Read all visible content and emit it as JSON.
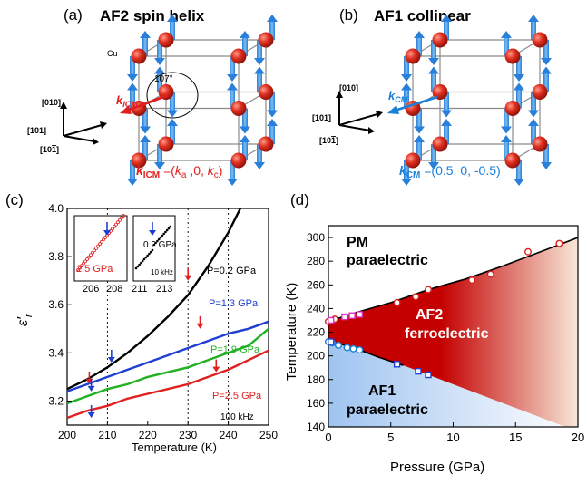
{
  "panel_a": {
    "label": "(a)",
    "title": "AF2 spin helix",
    "atom_label": "Cu",
    "angle": "107°",
    "k_label": "k",
    "k_sub": "ICM",
    "axes": {
      "y": "[010]",
      "x": "[101]",
      "z": "[10",
      "z_bar": "1",
      "z_end": "]"
    },
    "eq_k": "k",
    "eq_sub": "ICM",
    "eq_rest": " =(",
    "eq_ka": "k",
    "eq_ka_sub": "a",
    "eq_mid": " ,0, ",
    "eq_kc": "k",
    "eq_kc_sub": "c",
    "eq_end": ")"
  },
  "panel_b": {
    "label": "(b)",
    "title": "AF1 collinear",
    "k_label": "k",
    "k_sub": "CM",
    "axes": {
      "y": "[010]",
      "x": "[101]",
      "z": "[10",
      "z_bar": "1",
      "z_end": "]"
    },
    "eq_k": "k",
    "eq_sub": "CM",
    "eq_rest": " =(0.5, 0, -0.5)"
  },
  "chart_c": {
    "label": "(c)",
    "ylabel_main": "ε",
    "ylabel_prime": "′",
    "ylabel_sub": "r",
    "xlabel": "Temperature (K)",
    "freq": "100 kHz",
    "inset1": {
      "label": "2.5 GPa",
      "ticks": [
        "206",
        "208"
      ]
    },
    "inset2": {
      "label": "0.2 GPa",
      "freq": "10 kHz",
      "ticks": [
        "211",
        "213"
      ]
    },
    "yticks": [
      "3.2",
      "3.4",
      "3.6",
      "3.8",
      "4.0"
    ],
    "xticks": [
      "200",
      "210",
      "220",
      "230",
      "240",
      "250"
    ],
    "series_labels": [
      "P=0.2 GPa",
      "P=1.3 GPa",
      "P=1.9 GPa",
      "P=2.5 GPa"
    ]
  },
  "chart_d": {
    "label": "(d)",
    "ylabel": "Temperature (K)",
    "xlabel": "Pressure (GPa)",
    "yticks": [
      "140",
      "160",
      "180",
      "200",
      "220",
      "240",
      "260",
      "280",
      "300"
    ],
    "xticks": [
      "0",
      "5",
      "10",
      "15",
      "20"
    ],
    "region_pm_1": "PM",
    "region_pm_2": "paraelectric",
    "region_af2_1": "AF2",
    "region_af2_2": "ferroelectric",
    "region_af1_1": "AF1",
    "region_af1_2": "paraelectric"
  },
  "colors": {
    "red": "#e02020",
    "blue": "#1f3fd0",
    "green": "#21b021",
    "black": "#000000",
    "accent_blue": "#1a7fd6",
    "magenta": "#e030c0"
  },
  "chart_data": [
    {
      "type": "line",
      "xlabel": "Temperature (K)",
      "ylabel": "ε′r",
      "xlim": [
        200,
        250
      ],
      "ylim": [
        3.1,
        4.0
      ],
      "series": [
        {
          "name": "P=0.2 GPa",
          "color": "#000000",
          "x": [
            200,
            205,
            210,
            215,
            220,
            225,
            230,
            235,
            240,
            243
          ],
          "y": [
            3.25,
            3.29,
            3.34,
            3.4,
            3.47,
            3.55,
            3.64,
            3.76,
            3.9,
            4.0
          ]
        },
        {
          "name": "P=1.3 GPa",
          "color": "#1f3fd0",
          "x": [
            200,
            205,
            210,
            215,
            220,
            225,
            230,
            235,
            240,
            245,
            250
          ],
          "y": [
            3.24,
            3.27,
            3.3,
            3.33,
            3.36,
            3.39,
            3.42,
            3.45,
            3.48,
            3.5,
            3.53
          ]
        },
        {
          "name": "P=1.9 GPa",
          "color": "#21b021",
          "x": [
            200,
            205,
            210,
            215,
            220,
            225,
            230,
            235,
            240,
            245,
            250
          ],
          "y": [
            3.19,
            3.22,
            3.25,
            3.27,
            3.3,
            3.32,
            3.34,
            3.37,
            3.4,
            3.43,
            3.5
          ]
        },
        {
          "name": "P=2.5 GPa",
          "color": "#e02020",
          "x": [
            200,
            205,
            210,
            215,
            220,
            225,
            230,
            235,
            240,
            245,
            250
          ],
          "y": [
            3.13,
            3.16,
            3.18,
            3.21,
            3.23,
            3.25,
            3.27,
            3.3,
            3.33,
            3.37,
            3.41
          ]
        }
      ]
    },
    {
      "type": "scatter",
      "xlabel": "Pressure (GPa)",
      "ylabel": "Temperature (K)",
      "xlim": [
        0,
        20
      ],
      "ylim": [
        140,
        310
      ],
      "series": [
        {
          "color": "#e02020",
          "marker": "circle",
          "x": [
            0.0,
            0.5,
            5.5,
            7.0,
            8.0,
            11.5,
            13.0,
            16.0,
            18.5
          ],
          "y": [
            229,
            231,
            245,
            250,
            256,
            264,
            269,
            288,
            295
          ]
        },
        {
          "color": "#e030c0",
          "marker": "square",
          "x": [
            0.2,
            1.3,
            1.9,
            2.5
          ],
          "y": [
            230,
            233,
            234,
            235
          ]
        },
        {
          "color": "#1a7fd6",
          "marker": "circle",
          "x": [
            0.0,
            0.3,
            0.8,
            1.5,
            2.0,
            2.5
          ],
          "y": [
            212,
            211,
            209,
            207,
            206,
            205
          ]
        },
        {
          "color": "#1f3fd0",
          "marker": "square",
          "x": [
            0.2,
            5.5,
            7.2,
            8.0
          ],
          "y": [
            212,
            193,
            187,
            184
          ]
        }
      ]
    }
  ]
}
